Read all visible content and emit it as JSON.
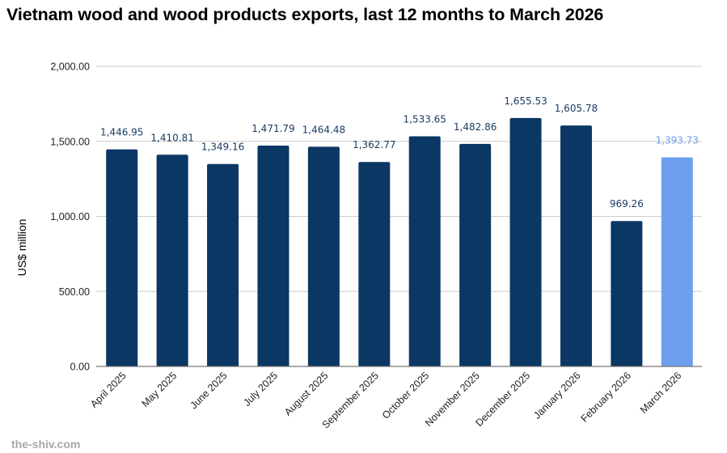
{
  "title": "Vietnam wood and wood products exports, last 12 months to March 2026",
  "watermark": "the-shiv.com",
  "colors": {
    "bar": "#0a3763",
    "highlight": "#6d9eeb",
    "grid": "#cccccc",
    "axis": "#777777"
  },
  "chart_data": {
    "type": "bar",
    "title": "Vietnam wood and wood products exports, last 12 months to March 2026",
    "xlabel": "",
    "ylabel": "US$ million",
    "ylim": [
      0,
      2000
    ],
    "yticks": [
      "0.00",
      "500.00",
      "1,000.00",
      "1,500.00",
      "2,000.00"
    ],
    "ytick_values": [
      0,
      500,
      1000,
      1500,
      2000
    ],
    "grid": true,
    "categories": [
      "April 2025",
      "May 2025",
      "June 2025",
      "July 2025",
      "August 2025",
      "September 2025",
      "October 2025",
      "November 2025",
      "December 2025",
      "January 2026",
      "February 2026",
      "March 2026"
    ],
    "values": [
      1446.95,
      1410.81,
      1349.16,
      1471.79,
      1464.48,
      1362.77,
      1533.65,
      1482.86,
      1655.53,
      1605.78,
      969.26,
      1393.73
    ],
    "labels": [
      "1,446.95",
      "1,410.81",
      "1,349.16",
      "1,471.79",
      "1,464.48",
      "1,362.77",
      "1,533.65",
      "1,482.86",
      "1,655.53",
      "1,605.78",
      "969.26",
      "1,393.73"
    ],
    "highlighted": [
      false,
      false,
      false,
      false,
      false,
      false,
      false,
      false,
      false,
      false,
      false,
      true
    ]
  }
}
